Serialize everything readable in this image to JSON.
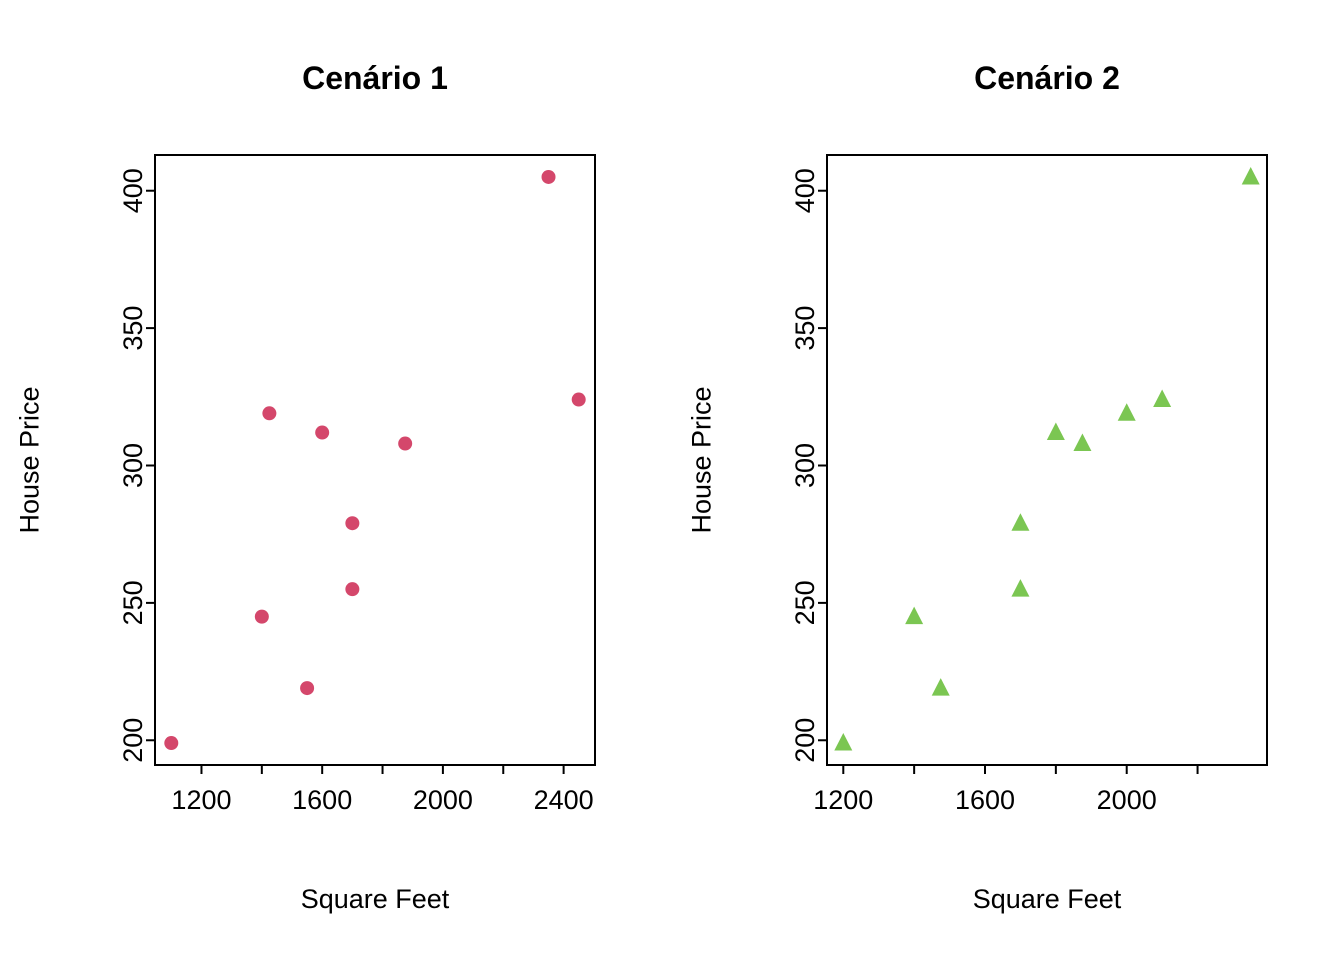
{
  "figure": {
    "background": "#ffffff",
    "panel_count": 2
  },
  "chart_data": [
    {
      "type": "scatter",
      "title": "Cenário 1",
      "xlabel": "Square Feet",
      "ylabel": "House Price",
      "marker": "filled-circle",
      "marker_color": "#d4476b",
      "grid": false,
      "legend": "none",
      "points": [
        [
          1100,
          199
        ],
        [
          1400,
          245
        ],
        [
          1425,
          319
        ],
        [
          1550,
          219
        ],
        [
          1600,
          312
        ],
        [
          1700,
          255
        ],
        [
          1700,
          279
        ],
        [
          1875,
          308
        ],
        [
          2350,
          405
        ],
        [
          2450,
          324
        ]
      ],
      "xlim": [
        1046,
        2504
      ],
      "ylim": [
        191,
        413
      ],
      "xticks": [
        1200,
        1400,
        1600,
        1800,
        2000,
        2200,
        2400
      ],
      "xtick_labels": [
        "1200",
        "",
        "1600",
        "",
        "2000",
        "",
        "2400"
      ],
      "yticks": [
        200,
        250,
        300,
        350,
        400
      ],
      "ytick_labels": [
        "200",
        "250",
        "300",
        "350",
        "400"
      ]
    },
    {
      "type": "scatter",
      "title": "Cenário 2",
      "xlabel": "Square Feet",
      "ylabel": "House Price",
      "marker": "filled-triangle",
      "marker_color": "#7bc652",
      "grid": false,
      "legend": "none",
      "points": [
        [
          1200,
          199
        ],
        [
          1400,
          245
        ],
        [
          1475,
          219
        ],
        [
          1700,
          255
        ],
        [
          1700,
          279
        ],
        [
          1800,
          312
        ],
        [
          1875,
          308
        ],
        [
          2000,
          319
        ],
        [
          2100,
          324
        ],
        [
          2350,
          405
        ]
      ],
      "xlim": [
        1154,
        2396
      ],
      "ylim": [
        191,
        413
      ],
      "xticks": [
        1200,
        1400,
        1600,
        1800,
        2000,
        2200
      ],
      "xtick_labels": [
        "1200",
        "",
        "1600",
        "",
        "2000",
        ""
      ],
      "yticks": [
        200,
        250,
        300,
        350,
        400
      ],
      "ytick_labels": [
        "200",
        "250",
        "300",
        "350",
        "400"
      ]
    }
  ]
}
